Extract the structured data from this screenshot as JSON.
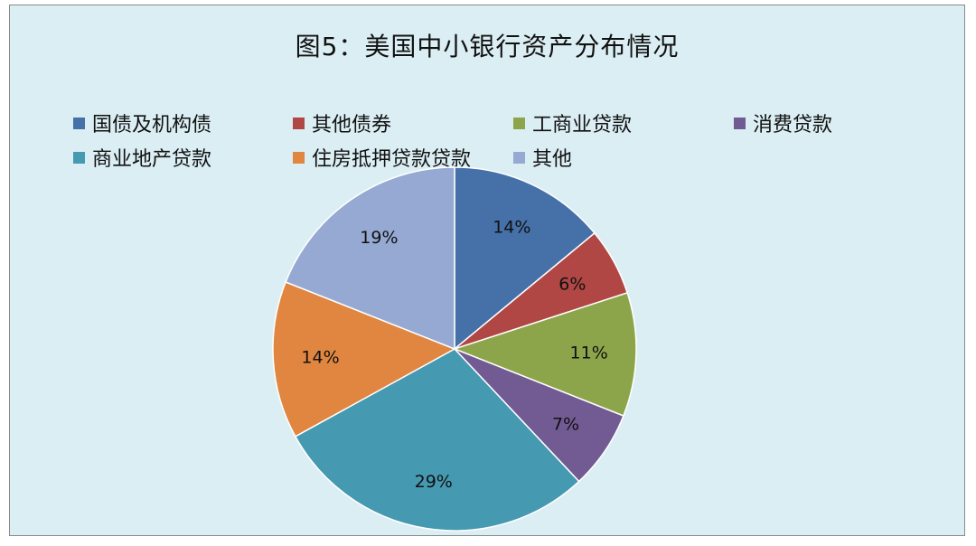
{
  "chart_data": {
    "type": "pie",
    "title": "图5：美国中小银行资产分布情况",
    "legend_position": "top",
    "categories": [
      "国债及机构债",
      "其他债券",
      "工商业贷款",
      "消费贷款",
      "商业地产贷款",
      "住房抵押贷款贷款",
      "其他"
    ],
    "values": [
      14,
      6,
      11,
      7,
      29,
      14,
      19
    ],
    "labels": [
      "14%",
      "6%",
      "11%",
      "7%",
      "29%",
      "14%",
      "19%"
    ],
    "colors": [
      "#4570a8",
      "#b04745",
      "#8da54a",
      "#725a93",
      "#4599b1",
      "#e08640",
      "#95a9d3"
    ]
  }
}
